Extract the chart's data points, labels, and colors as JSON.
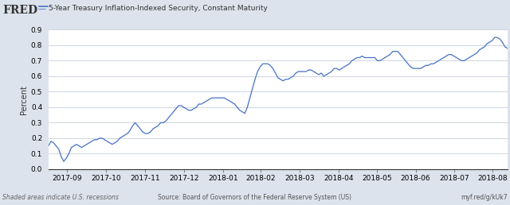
{
  "title": "5-Year Treasury Inflation-Indexed Security, Constant Maturity",
  "ylabel": "Percent",
  "source_text": "Source: Board of Governors of the Federal Reserve System (US)",
  "shaded_text": "Shaded areas indicate U.S. recessions",
  "url_text": "myf.red/g/kUk7",
  "ylim": [
    0.0,
    0.9
  ],
  "yticks": [
    0.0,
    0.1,
    0.2,
    0.3,
    0.4,
    0.5,
    0.6,
    0.7,
    0.8,
    0.9
  ],
  "line_color": "#4472C4",
  "background_color": "#dce3ed",
  "plot_bg_color": "#ffffff",
  "header_bg_color": "#dce3ed",
  "grid_color": "#c8d0dc",
  "values": [
    0.15,
    0.18,
    0.17,
    0.15,
    0.13,
    0.08,
    0.05,
    0.07,
    0.1,
    0.14,
    0.15,
    0.16,
    0.15,
    0.14,
    0.15,
    0.16,
    0.17,
    0.18,
    0.19,
    0.19,
    0.2,
    0.2,
    0.19,
    0.18,
    0.17,
    0.16,
    0.17,
    0.18,
    0.2,
    0.21,
    0.22,
    0.23,
    0.25,
    0.28,
    0.3,
    0.28,
    0.26,
    0.24,
    0.23,
    0.23,
    0.24,
    0.26,
    0.27,
    0.28,
    0.3,
    0.3,
    0.31,
    0.33,
    0.35,
    0.37,
    0.39,
    0.41,
    0.41,
    0.4,
    0.39,
    0.38,
    0.38,
    0.39,
    0.4,
    0.42,
    0.42,
    0.43,
    0.44,
    0.45,
    0.46,
    0.46,
    0.46,
    0.46,
    0.46,
    0.46,
    0.45,
    0.44,
    0.43,
    0.42,
    0.4,
    0.38,
    0.37,
    0.36,
    0.4,
    0.46,
    0.52,
    0.58,
    0.63,
    0.66,
    0.68,
    0.68,
    0.68,
    0.67,
    0.65,
    0.62,
    0.59,
    0.58,
    0.57,
    0.58,
    0.58,
    0.59,
    0.6,
    0.62,
    0.63,
    0.63,
    0.63,
    0.63,
    0.64,
    0.64,
    0.63,
    0.62,
    0.61,
    0.62,
    0.6,
    0.61,
    0.62,
    0.63,
    0.65,
    0.65,
    0.64,
    0.65,
    0.66,
    0.67,
    0.68,
    0.7,
    0.71,
    0.72,
    0.72,
    0.73,
    0.72,
    0.72,
    0.72,
    0.72,
    0.72,
    0.7,
    0.7,
    0.71,
    0.72,
    0.73,
    0.74,
    0.76,
    0.76,
    0.76,
    0.74,
    0.72,
    0.7,
    0.68,
    0.66,
    0.65,
    0.65,
    0.65,
    0.65,
    0.66,
    0.67,
    0.67,
    0.68,
    0.68,
    0.69,
    0.7,
    0.71,
    0.72,
    0.73,
    0.74,
    0.74,
    0.73,
    0.72,
    0.71,
    0.7,
    0.7,
    0.71,
    0.72,
    0.73,
    0.74,
    0.75,
    0.77,
    0.78,
    0.79,
    0.81,
    0.82,
    0.83,
    0.85,
    0.85,
    0.84,
    0.82,
    0.79,
    0.78
  ],
  "xtick_labels": [
    "2017-09",
    "2017-10",
    "2017-11",
    "2017-12",
    "2018-01",
    "2018-02",
    "2018-03",
    "2018-04",
    "2018-05",
    "2018-06",
    "2018-07",
    "2018-08"
  ],
  "xtick_fracs": [
    0.04,
    0.125,
    0.21,
    0.295,
    0.38,
    0.463,
    0.547,
    0.632,
    0.716,
    0.8,
    0.884,
    0.968
  ]
}
